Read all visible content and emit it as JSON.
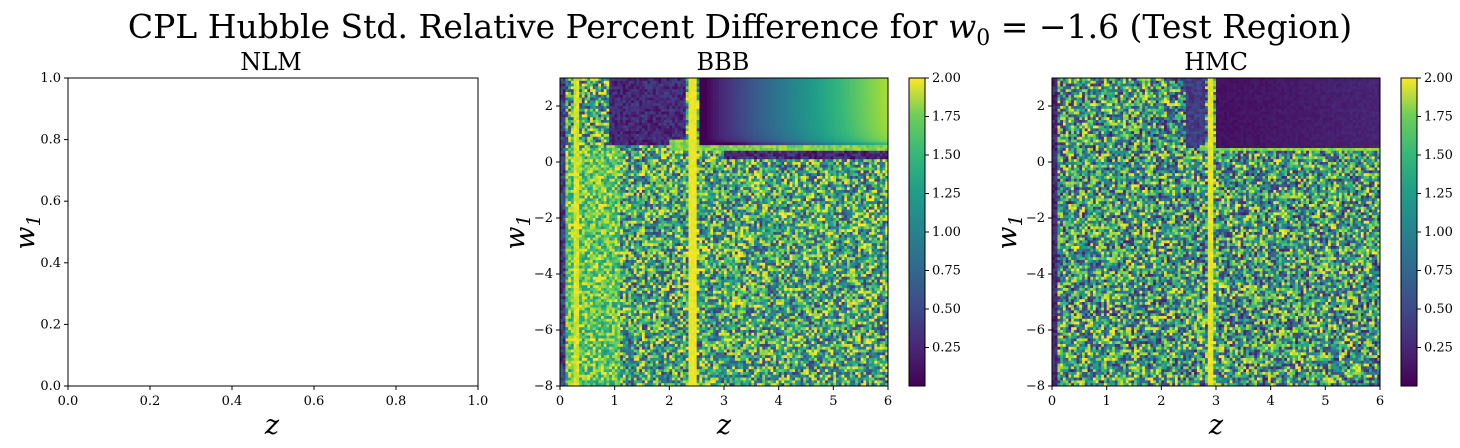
{
  "figure": {
    "title_prefix": "CPL Hubble Std. Relative Percent Difference for ",
    "title_math": "w",
    "title_math_sub": "0",
    "title_suffix": " = −1.6 (Test Region)"
  },
  "chart_data": [
    {
      "type": "line",
      "title": "NLM",
      "xlabel": "z",
      "ylabel": "w",
      "ylabel_sub": "1",
      "xlim": [
        0,
        1
      ],
      "ylim": [
        0,
        1
      ],
      "xticks": [
        "0.0",
        "0.2",
        "0.4",
        "0.6",
        "0.8",
        "1.0"
      ],
      "yticks": [
        "0.0",
        "0.2",
        "0.4",
        "0.6",
        "0.8",
        "1.0"
      ],
      "series": [],
      "empty": true
    },
    {
      "type": "heatmap",
      "title": "BBB",
      "xlabel": "z",
      "ylabel": "w",
      "ylabel_sub": "1",
      "xlim": [
        0,
        6
      ],
      "ylim": [
        -8,
        3
      ],
      "xticks": [
        "0",
        "1",
        "2",
        "3",
        "4",
        "5",
        "6"
      ],
      "yticks": [
        "2",
        "0",
        "−2",
        "−4",
        "−6",
        "−8"
      ],
      "colormap": "viridis",
      "color_range": [
        0,
        2
      ],
      "colorbar_ticks": [
        "0.25",
        "0.50",
        "0.75",
        "1.00",
        "1.25",
        "1.50",
        "1.75",
        "2.00"
      ],
      "features": {
        "vertical_band_z": 2.42,
        "horizontal_band_w1": 0.6,
        "smooth_region": "w1 > 0.6, z > 2.4: values increase with z from ~0 to ~1.8",
        "left_bright_band_z": 0.3,
        "noisy_region_mean": 1.2
      }
    },
    {
      "type": "heatmap",
      "title": "HMC",
      "xlabel": "z",
      "ylabel": "w",
      "ylabel_sub": "1",
      "xlim": [
        0,
        6
      ],
      "ylim": [
        -8,
        3
      ],
      "xticks": [
        "0",
        "1",
        "2",
        "3",
        "4",
        "5",
        "6"
      ],
      "yticks": [
        "2",
        "0",
        "−2",
        "−4",
        "−6",
        "−8"
      ],
      "colormap": "viridis",
      "color_range": [
        0,
        2
      ],
      "colorbar_ticks": [
        "0.25",
        "0.50",
        "0.75",
        "1.00",
        "1.25",
        "1.50",
        "1.75",
        "2.00"
      ],
      "features": {
        "vertical_band_z": 2.9,
        "horizontal_band_w1": 0.5,
        "smooth_region": "w1 > 0.5, z > 2.9: values near 0 (dark)",
        "left_dark_band_z": 0.1,
        "noisy_region_mean": 1.1
      }
    }
  ]
}
